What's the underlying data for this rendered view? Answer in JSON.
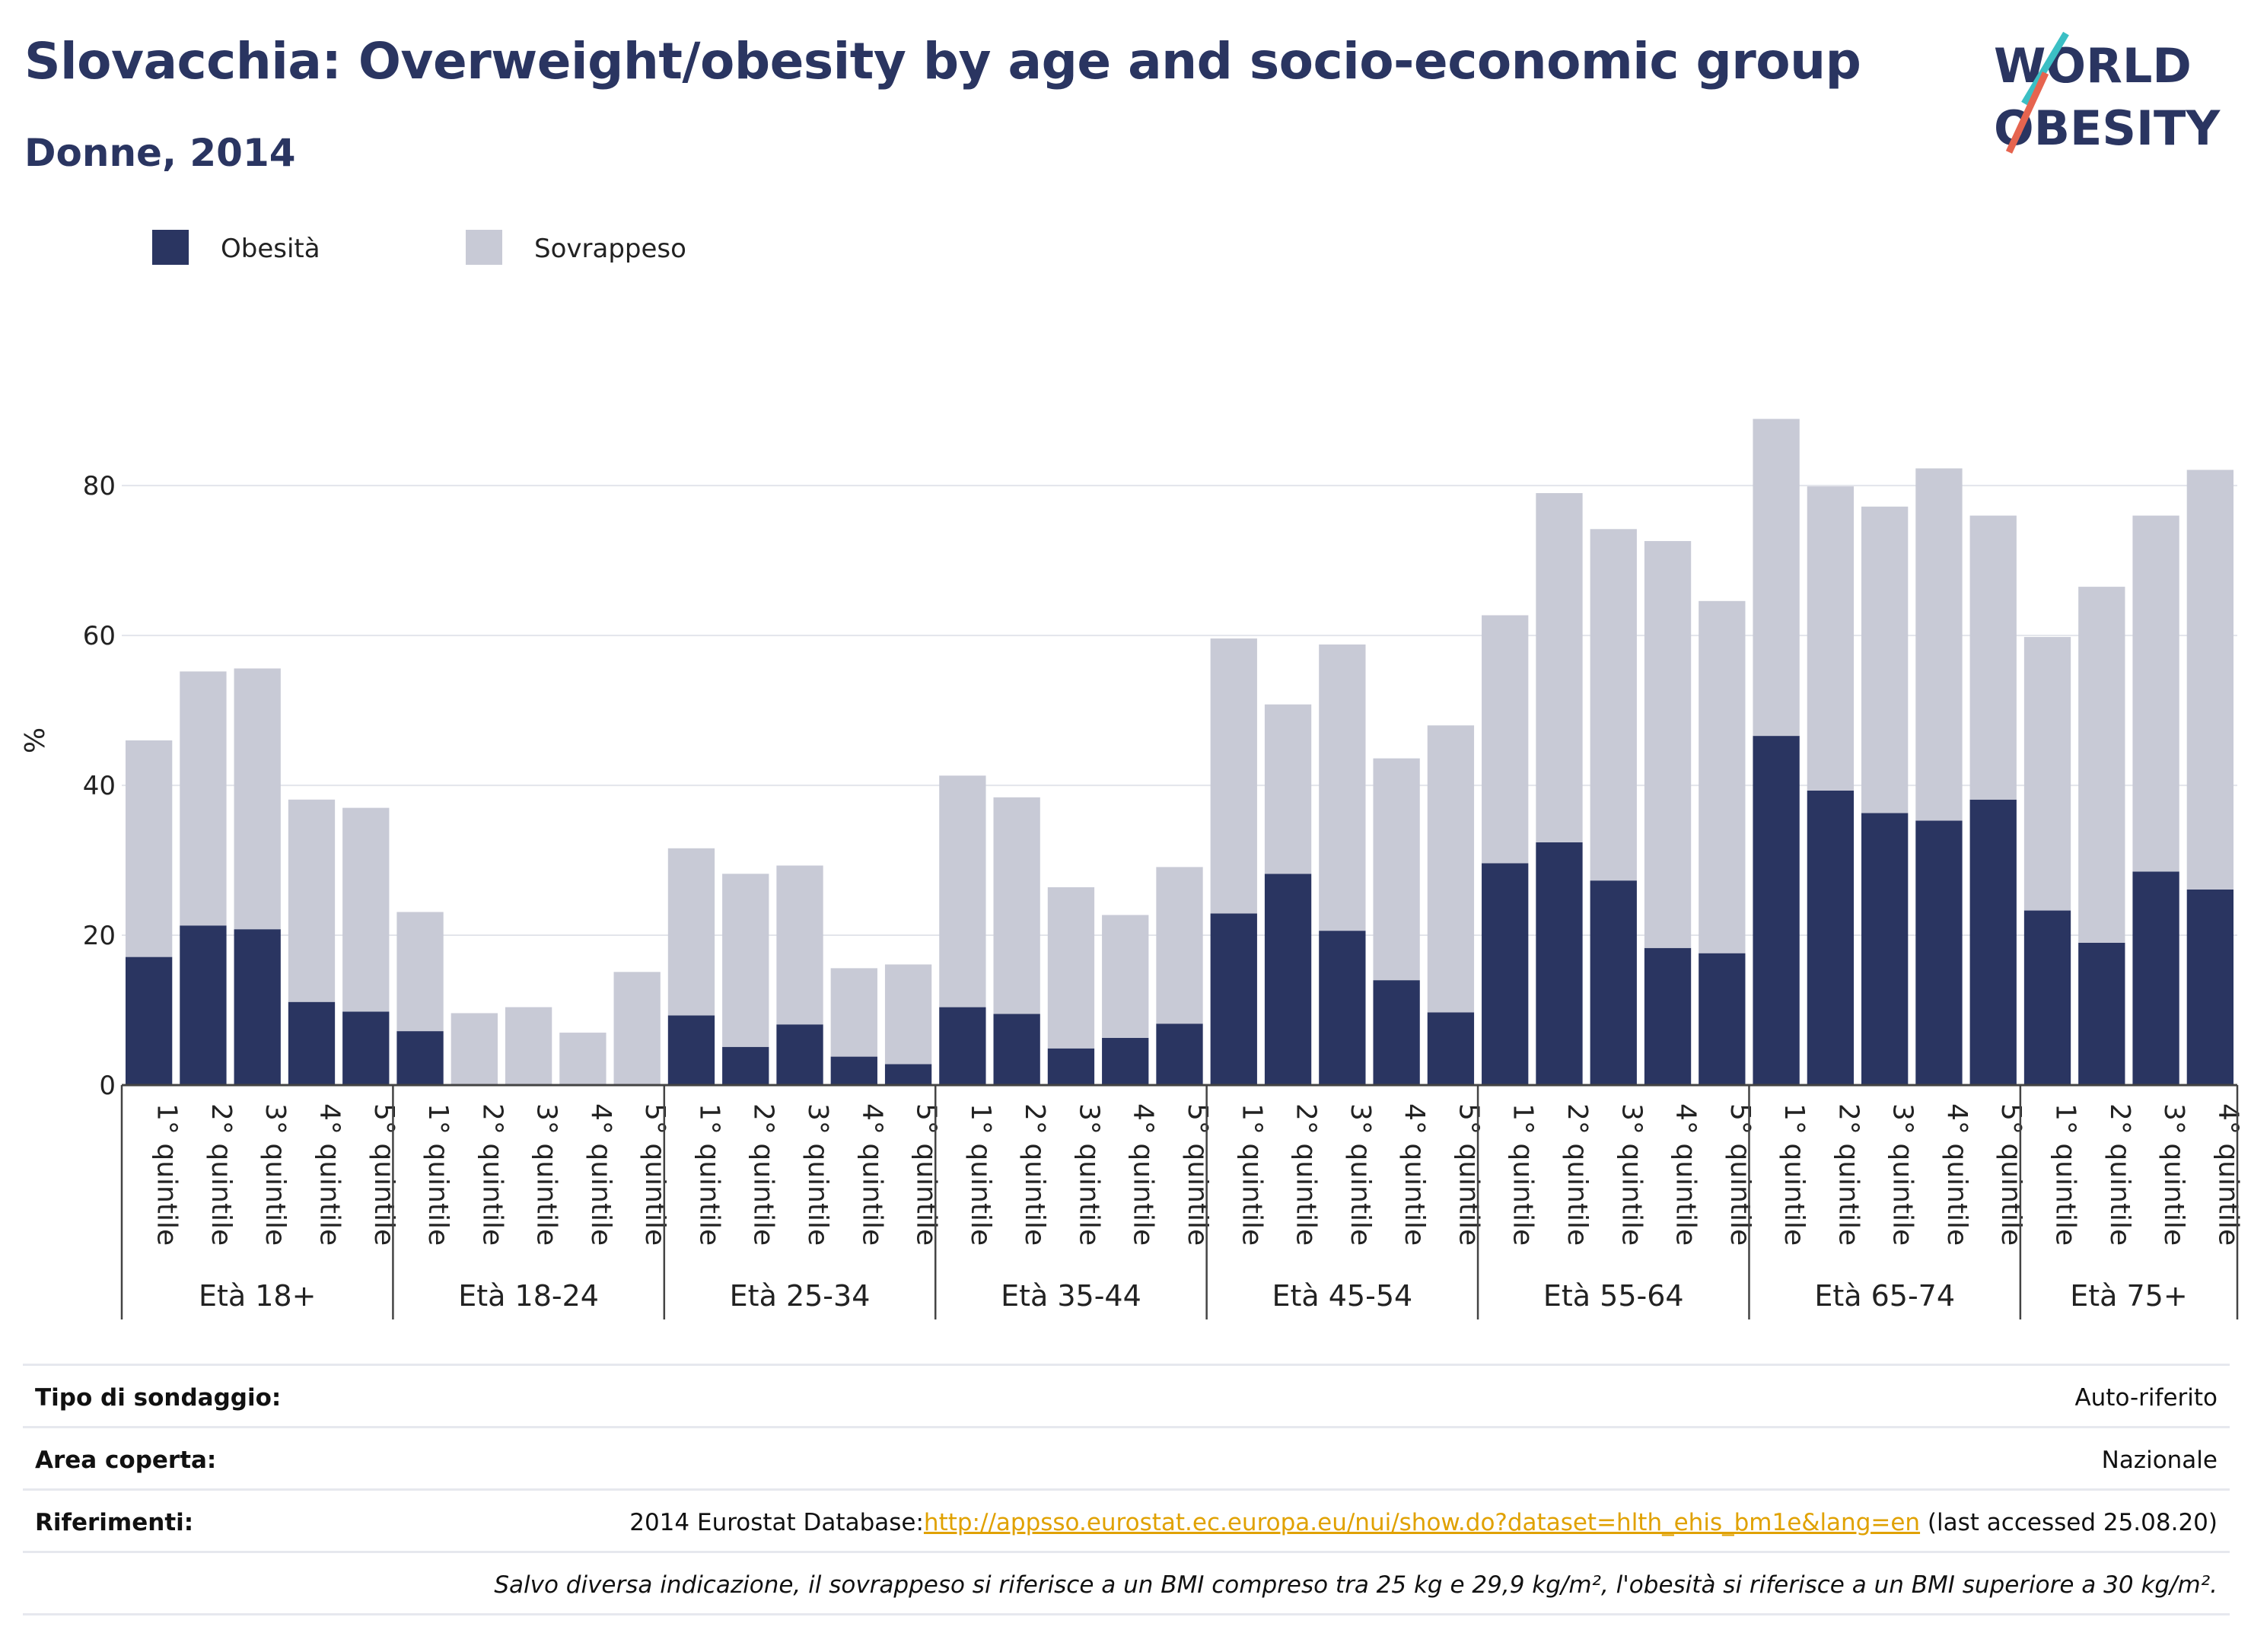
{
  "header": {
    "title": "Slovacchia: Overweight/obesity by age and socio-economic group",
    "subtitle": "Donne, 2014"
  },
  "logo": {
    "line1": "WORLD",
    "line2": "OBESITY"
  },
  "colors": {
    "obesity": "#2a3561",
    "overweight": "#c8cad6",
    "title": "#2a3561",
    "link": "#e0a100"
  },
  "chart_data": {
    "type": "bar",
    "stacked": true,
    "ylabel": "%",
    "ylim": [
      0,
      92
    ],
    "yticks": [
      0,
      20,
      40,
      60,
      80
    ],
    "grid": true,
    "legend_position": "top-left",
    "series": [
      {
        "name": "Obesità",
        "color": "#2a3561",
        "values": [
          17.1,
          21.3,
          20.8,
          11.1,
          9.8,
          7.2,
          0,
          0,
          0,
          0,
          9.3,
          5.1,
          8.1,
          3.8,
          2.8,
          10.4,
          9.5,
          4.9,
          6.3,
          8.2,
          22.9,
          28.2,
          20.6,
          14.0,
          9.7,
          29.6,
          32.4,
          27.3,
          18.3,
          17.6,
          46.6,
          39.3,
          36.3,
          35.3,
          38.1,
          23.3,
          19.0,
          28.5,
          26.1
        ]
      },
      {
        "name": "Sovrappeso",
        "color": "#c8cad6",
        "values": [
          28.9,
          33.9,
          34.8,
          27.0,
          27.2,
          15.9,
          9.6,
          10.4,
          7.0,
          15.1,
          22.3,
          23.1,
          21.2,
          11.8,
          13.3,
          30.9,
          28.9,
          21.5,
          16.4,
          20.9,
          36.7,
          22.6,
          38.2,
          29.6,
          38.3,
          33.1,
          46.6,
          46.9,
          54.3,
          47.0,
          42.3,
          40.6,
          40.9,
          47.0,
          37.9,
          36.5,
          47.5,
          47.5,
          56.0
        ]
      }
    ],
    "groups": [
      {
        "label": "Età 18+",
        "categories": [
          "1° quintile",
          "2° quintile",
          "3° quintile",
          "4° quintile",
          "5° quintile"
        ]
      },
      {
        "label": "Età 18-24",
        "categories": [
          "1° quintile",
          "2° quintile",
          "3° quintile",
          "4° quintile",
          "5° quintile"
        ]
      },
      {
        "label": "Età 25-34",
        "categories": [
          "1° quintile",
          "2° quintile",
          "3° quintile",
          "4° quintile",
          "5° quintile"
        ]
      },
      {
        "label": "Età 35-44",
        "categories": [
          "1° quintile",
          "2° quintile",
          "3° quintile",
          "4° quintile",
          "5° quintile"
        ]
      },
      {
        "label": "Età 45-54",
        "categories": [
          "1° quintile",
          "2° quintile",
          "3° quintile",
          "4° quintile",
          "5° quintile"
        ]
      },
      {
        "label": "Età 55-64",
        "categories": [
          "1° quintile",
          "2° quintile",
          "3° quintile",
          "4° quintile",
          "5° quintile"
        ]
      },
      {
        "label": "Età 65-74",
        "categories": [
          "1° quintile",
          "2° quintile",
          "3° quintile",
          "4° quintile",
          "5° quintile"
        ]
      },
      {
        "label": "Età 75+",
        "categories": [
          "1° quintile",
          "2° quintile",
          "3° quintile",
          "4° quintile"
        ]
      }
    ]
  },
  "meta": {
    "survey_label": "Tipo di sondaggio:",
    "survey_value": "Auto-riferito",
    "area_label": "Area coperta:",
    "area_value": "Nazionale",
    "refs_label": "Riferimenti:",
    "refs_prefix": "2014 Eurostat Database:",
    "refs_link": "http://appsso.eurostat.ec.europa.eu/nui/show.do?dataset=hlth_ehis_bm1e&lang=en",
    "refs_suffix": " (last accessed 25.08.20)",
    "note": "Salvo diversa indicazione, il sovrappeso si riferisce a un BMI compreso tra 25 kg e 29,9 kg/m², l'obesità si riferisce a un BMI superiore a 30 kg/m²."
  }
}
